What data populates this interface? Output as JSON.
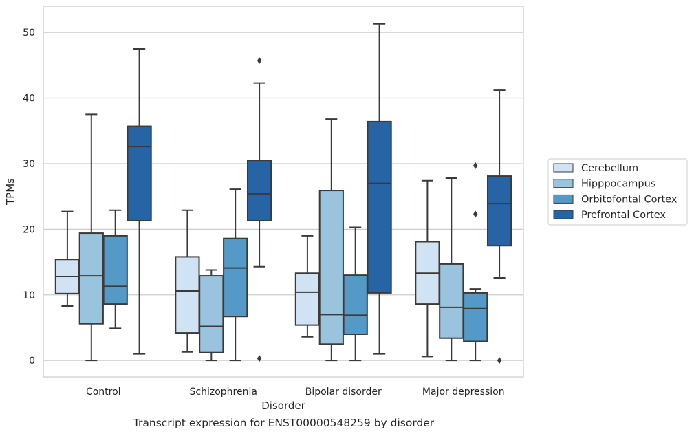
{
  "caption": "Transcript expression for ENST00000548259 by disorder",
  "chart_data": {
    "type": "boxplot",
    "title": "",
    "xlabel": "Disorder",
    "ylabel": "TPMs",
    "ylim": [
      -2.5,
      54
    ],
    "yticks": [
      0,
      10,
      20,
      30,
      40,
      50
    ],
    "grid": "horizontal",
    "legend_position": "right",
    "categories": [
      "Control",
      "Schizophrenia",
      "Bipolar disorder",
      "Major depression"
    ],
    "series": [
      {
        "name": "Cerebellum",
        "color": "#d1e2f2",
        "boxes": [
          {
            "whisker_low": 8.3,
            "q1": 10.2,
            "median": 12.8,
            "q3": 15.4,
            "whisker_high": 22.7,
            "outliers": []
          },
          {
            "whisker_low": 1.3,
            "q1": 4.2,
            "median": 10.6,
            "q3": 15.8,
            "whisker_high": 22.9,
            "outliers": []
          },
          {
            "whisker_low": 3.6,
            "q1": 5.4,
            "median": 10.4,
            "q3": 13.3,
            "whisker_high": 19.0,
            "outliers": []
          },
          {
            "whisker_low": 0.6,
            "q1": 8.6,
            "median": 13.3,
            "q3": 18.1,
            "whisker_high": 27.4,
            "outliers": []
          }
        ]
      },
      {
        "name": "Hipppocampus",
        "color": "#9ac4de",
        "boxes": [
          {
            "whisker_low": 0.0,
            "q1": 5.6,
            "median": 12.9,
            "q3": 19.4,
            "whisker_high": 37.5,
            "outliers": []
          },
          {
            "whisker_low": 0.0,
            "q1": 1.2,
            "median": 5.2,
            "q3": 12.9,
            "whisker_high": 13.8,
            "outliers": []
          },
          {
            "whisker_low": 0.0,
            "q1": 2.5,
            "median": 7.0,
            "q3": 25.9,
            "whisker_high": 36.8,
            "outliers": []
          },
          {
            "whisker_low": 0.0,
            "q1": 3.4,
            "median": 8.1,
            "q3": 14.7,
            "whisker_high": 27.8,
            "outliers": []
          }
        ]
      },
      {
        "name": "Orbitofontal Cortex",
        "color": "#5599c6",
        "boxes": [
          {
            "whisker_low": 4.9,
            "q1": 8.6,
            "median": 11.3,
            "q3": 19.0,
            "whisker_high": 22.9,
            "outliers": []
          },
          {
            "whisker_low": 0.0,
            "q1": 6.7,
            "median": 14.1,
            "q3": 18.6,
            "whisker_high": 26.1,
            "outliers": []
          },
          {
            "whisker_low": 0.0,
            "q1": 4.0,
            "median": 6.9,
            "q3": 13.0,
            "whisker_high": 20.3,
            "outliers": []
          },
          {
            "whisker_low": 0.0,
            "q1": 2.9,
            "median": 7.9,
            "q3": 10.3,
            "whisker_high": 10.9,
            "outliers": [
              22.3,
              29.7
            ]
          }
        ]
      },
      {
        "name": "Prefrontal Cortex",
        "color": "#2764a5",
        "boxes": [
          {
            "whisker_low": 1.0,
            "q1": 21.3,
            "median": 32.6,
            "q3": 35.7,
            "whisker_high": 47.5,
            "outliers": []
          },
          {
            "whisker_low": 14.3,
            "q1": 21.3,
            "median": 25.4,
            "q3": 30.5,
            "whisker_high": 42.3,
            "outliers": [
              45.7,
              0.3
            ]
          },
          {
            "whisker_low": 1.0,
            "q1": 10.3,
            "median": 27.0,
            "q3": 36.4,
            "whisker_high": 51.3,
            "outliers": []
          },
          {
            "whisker_low": 12.6,
            "q1": 17.5,
            "median": 23.9,
            "q3": 28.1,
            "whisker_high": 41.2,
            "outliers": [
              0.0
            ]
          }
        ]
      }
    ]
  }
}
